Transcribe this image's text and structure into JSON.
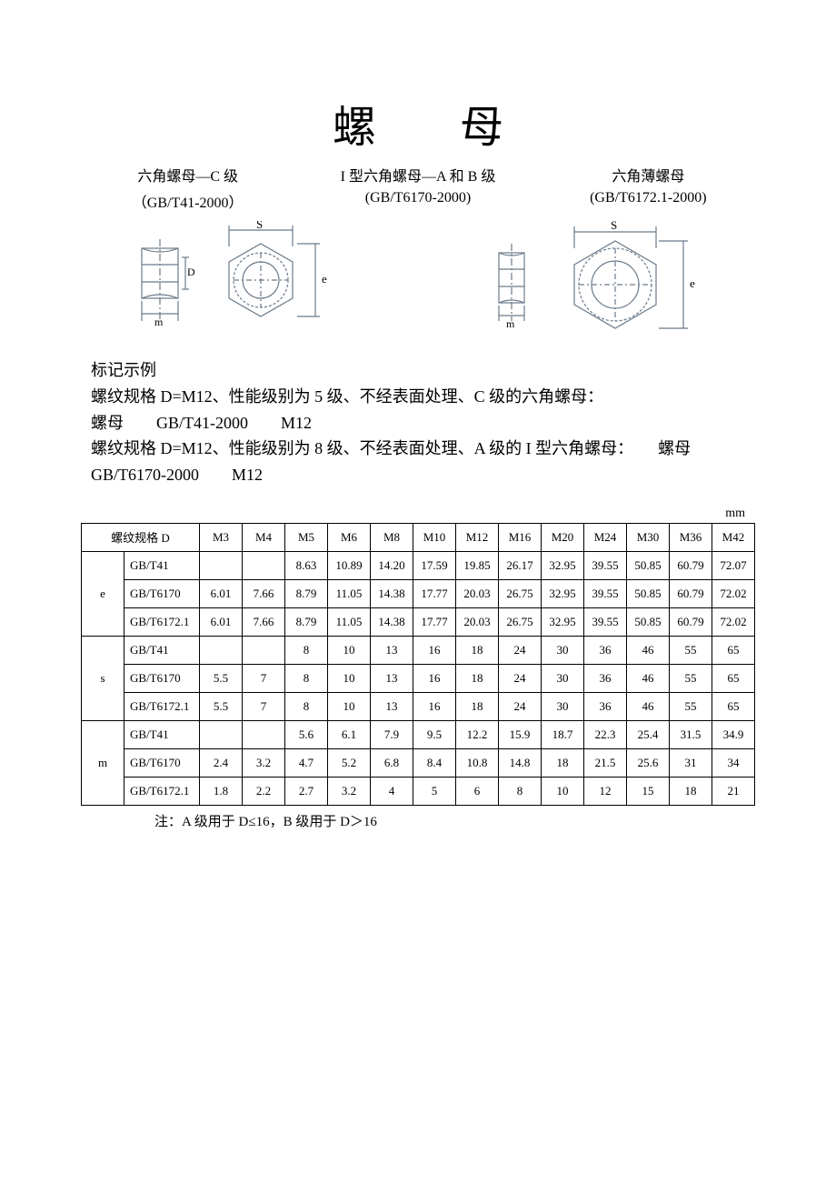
{
  "title": "螺 母",
  "subtitles": [
    {
      "name": "六角螺母—C 级",
      "code": "（GB/T41-2000）"
    },
    {
      "name": "I 型六角螺母—A 和 B 级",
      "code": "(GB/T6170-2000)"
    },
    {
      "name": "六角薄螺母",
      "code": "(GB/T6172.1-2000)"
    }
  ],
  "diagram_labels": {
    "s": "S",
    "e": "e",
    "m": "m",
    "D": "D"
  },
  "example": {
    "heading": "标记示例",
    "line1": "螺纹规格 D=M12、性能级别为 5 级、不经表面处理、C 级的六角螺母：",
    "line2": "螺母　　GB/T41-2000　　M12",
    "line3": "螺纹规格 D=M12、性能级别为 8 级、不经表面处理、A 级的 I 型六角螺母：　　螺母　　GB/T6170-2000　　M12"
  },
  "unit": "mm",
  "table": {
    "header_label": "螺纹规格 D",
    "sizes": [
      "M3",
      "M4",
      "M5",
      "M6",
      "M8",
      "M10",
      "M12",
      "M16",
      "M20",
      "M24",
      "M30",
      "M36",
      "M42"
    ],
    "groups": [
      {
        "param": "e",
        "rows": [
          {
            "std": "GB/T41",
            "vals": [
              "",
              "",
              "8.63",
              "10.89",
              "14.20",
              "17.59",
              "19.85",
              "26.17",
              "32.95",
              "39.55",
              "50.85",
              "60.79",
              "72.07"
            ]
          },
          {
            "std": "GB/T6170",
            "vals": [
              "6.01",
              "7.66",
              "8.79",
              "11.05",
              "14.38",
              "17.77",
              "20.03",
              "26.75",
              "32.95",
              "39.55",
              "50.85",
              "60.79",
              "72.02"
            ]
          },
          {
            "std": "GB/T6172.1",
            "vals": [
              "6.01",
              "7.66",
              "8.79",
              "11.05",
              "14.38",
              "17.77",
              "20.03",
              "26.75",
              "32.95",
              "39.55",
              "50.85",
              "60.79",
              "72.02"
            ]
          }
        ]
      },
      {
        "param": "s",
        "rows": [
          {
            "std": "GB/T41",
            "vals": [
              "",
              "",
              "8",
              "10",
              "13",
              "16",
              "18",
              "24",
              "30",
              "36",
              "46",
              "55",
              "65"
            ]
          },
          {
            "std": "GB/T6170",
            "vals": [
              "5.5",
              "7",
              "8",
              "10",
              "13",
              "16",
              "18",
              "24",
              "30",
              "36",
              "46",
              "55",
              "65"
            ]
          },
          {
            "std": "GB/T6172.1",
            "vals": [
              "5.5",
              "7",
              "8",
              "10",
              "13",
              "16",
              "18",
              "24",
              "30",
              "36",
              "46",
              "55",
              "65"
            ]
          }
        ]
      },
      {
        "param": "m",
        "rows": [
          {
            "std": "GB/T41",
            "vals": [
              "",
              "",
              "5.6",
              "6.1",
              "7.9",
              "9.5",
              "12.2",
              "15.9",
              "18.7",
              "22.3",
              "25.4",
              "31.5",
              "34.9"
            ]
          },
          {
            "std": "GB/T6170",
            "vals": [
              "2.4",
              "3.2",
              "4.7",
              "5.2",
              "6.8",
              "8.4",
              "10.8",
              "14.8",
              "18",
              "21.5",
              "25.6",
              "31",
              "34"
            ]
          },
          {
            "std": "GB/T6172.1",
            "vals": [
              "1.8",
              "2.2",
              "2.7",
              "3.2",
              "4",
              "5",
              "6",
              "8",
              "10",
              "12",
              "15",
              "18",
              "21"
            ]
          }
        ]
      }
    ]
  },
  "footnote": "注：A 级用于 D≤16，B 级用于 D＞16",
  "colors": {
    "line": "#6a7a8a",
    "text": "#000000",
    "bg": "#ffffff"
  }
}
